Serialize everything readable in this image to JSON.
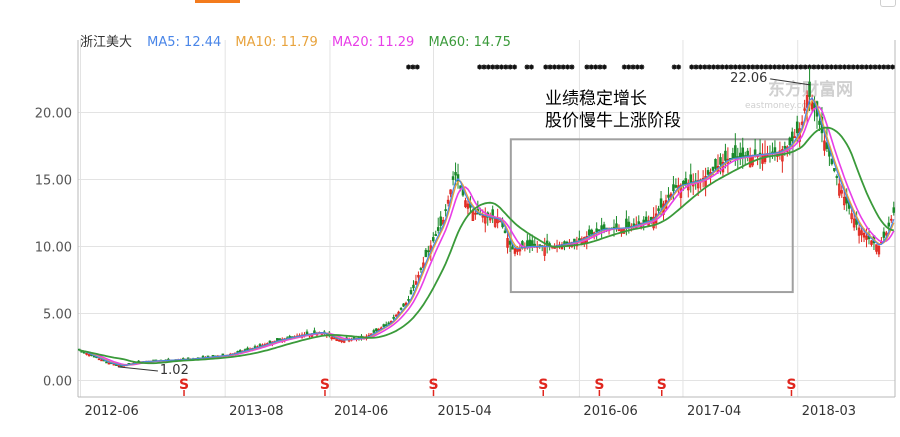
{
  "legend": {
    "stock": "浙江美大",
    "ma5": "MA5: 12.44",
    "ma10": "MA10: 11.79",
    "ma20": "MA20: 11.29",
    "ma60": "MA60: 14.75"
  },
  "colors": {
    "ma5": "#4a86e8",
    "ma10": "#e8a33d",
    "ma20": "#e83ee8",
    "ma60": "#3a9a3a",
    "up": "#e0261e",
    "down": "#1a8a2a",
    "box": "#a0a0a0",
    "grid": "#e3e3e3",
    "axis": "#b8b8b8"
  },
  "watermark": {
    "main": "东方财富网",
    "sub": "eastmoney.com"
  },
  "annotation": {
    "line1": "业绩稳定增长",
    "line2": "股价慢牛上涨阶段"
  },
  "callouts": {
    "low": "1.02",
    "high": "22.06"
  },
  "chart_data": {
    "type": "candlestick",
    "title": "",
    "xlabel": "",
    "ylabel": "",
    "ylim": [
      -0.6,
      23.0
    ],
    "y_ticks": [
      {
        "value": 0,
        "label": "0.00"
      },
      {
        "value": 5,
        "label": "5.00"
      },
      {
        "value": 10,
        "label": "10.00"
      },
      {
        "value": 15,
        "label": "15.00"
      },
      {
        "value": 20,
        "label": "20.00"
      }
    ],
    "x_range": [
      2012.4,
      2018.95
    ],
    "x_ticks": [
      {
        "t": 2012.42,
        "label": "2012-06"
      },
      {
        "t": 2013.58,
        "label": "2013-08"
      },
      {
        "t": 2014.42,
        "label": "2014-06"
      },
      {
        "t": 2015.25,
        "label": "2015-04"
      },
      {
        "t": 2016.42,
        "label": "2016-06"
      },
      {
        "t": 2017.25,
        "label": "2017-04"
      },
      {
        "t": 2018.17,
        "label": "2018-03"
      }
    ],
    "price_path": [
      [
        2012.4,
        2.3
      ],
      [
        2012.55,
        1.7
      ],
      [
        2012.65,
        1.3
      ],
      [
        2012.75,
        1.1
      ],
      [
        2012.9,
        1.4
      ],
      [
        2013.1,
        1.5
      ],
      [
        2013.3,
        1.6
      ],
      [
        2013.6,
        1.9
      ],
      [
        2013.8,
        2.4
      ],
      [
        2014.0,
        3.0
      ],
      [
        2014.2,
        3.4
      ],
      [
        2014.35,
        3.6
      ],
      [
        2014.5,
        3.0
      ],
      [
        2014.7,
        3.2
      ],
      [
        2014.9,
        4.3
      ],
      [
        2015.05,
        6.0
      ],
      [
        2015.2,
        9.5
      ],
      [
        2015.33,
        12.0
      ],
      [
        2015.42,
        15.5
      ],
      [
        2015.5,
        13.5
      ],
      [
        2015.58,
        12.5
      ],
      [
        2015.68,
        12.2
      ],
      [
        2015.78,
        12.0
      ],
      [
        2015.88,
        9.8
      ],
      [
        2016.0,
        10.0
      ],
      [
        2016.2,
        10.0
      ],
      [
        2016.4,
        10.4
      ],
      [
        2016.6,
        11.3
      ],
      [
        2016.8,
        11.4
      ],
      [
        2017.0,
        12.0
      ],
      [
        2017.2,
        14.5
      ],
      [
        2017.4,
        15.0
      ],
      [
        2017.6,
        16.5
      ],
      [
        2017.8,
        16.8
      ],
      [
        2018.0,
        17.0
      ],
      [
        2018.1,
        17.5
      ],
      [
        2018.2,
        19.0
      ],
      [
        2018.25,
        21.5
      ],
      [
        2018.3,
        20.5
      ],
      [
        2018.38,
        18.0
      ],
      [
        2018.45,
        16.0
      ],
      [
        2018.55,
        13.5
      ],
      [
        2018.65,
        11.5
      ],
      [
        2018.75,
        10.5
      ],
      [
        2018.82,
        10.0
      ],
      [
        2018.88,
        11.0
      ],
      [
        2018.95,
        12.8
      ]
    ],
    "candle_count": 330,
    "ma_series": [
      {
        "name": "MA20",
        "key": "ma20",
        "window": 6,
        "width": 1.6
      },
      {
        "name": "MA10",
        "key": "ma10",
        "window": 3,
        "width": 1.4
      },
      {
        "name": "MA5",
        "key": "ma5",
        "window": 2,
        "width": 1.2
      },
      {
        "name": "MA60",
        "key": "ma60",
        "window": 18,
        "width": 1.8
      }
    ],
    "s_markers": [
      2013.25,
      2014.38,
      2015.25,
      2016.13,
      2016.58,
      2017.08,
      2018.12
    ],
    "low_point": {
      "t": 2012.72,
      "value": 1.02
    },
    "high_point": {
      "t": 2018.27,
      "value": 22.06
    },
    "highlight_box": {
      "t0": 2015.87,
      "t1": 2018.13,
      "y0": 6.6,
      "y1": 18.0
    }
  }
}
